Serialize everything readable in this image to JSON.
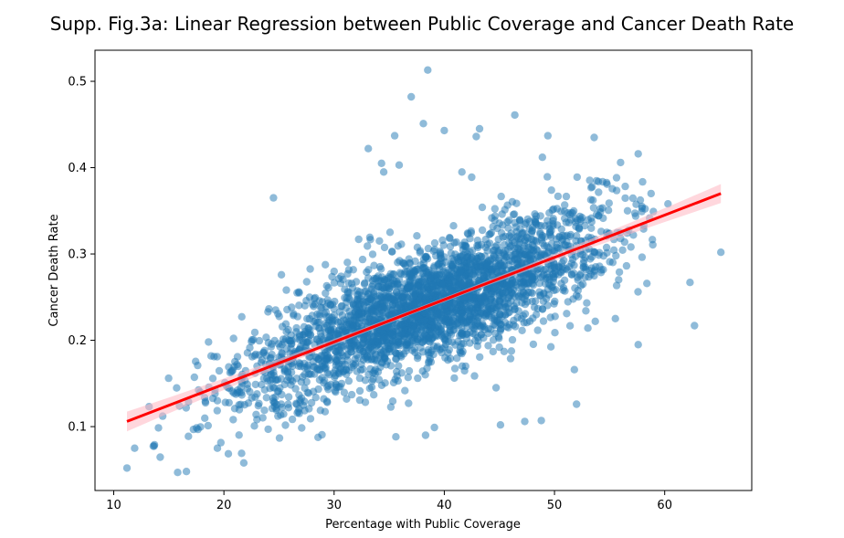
{
  "chart_data": {
    "type": "scatter",
    "title": "Supp. Fig.3a: Linear Regression between Public Coverage and Cancer Death Rate",
    "xlabel": "Percentage with Public Coverage",
    "ylabel": "Cancer Death Rate",
    "xlim": [
      8.3,
      67.9
    ],
    "ylim": [
      0.026,
      0.536
    ],
    "x_ticks": [
      10,
      20,
      30,
      40,
      50,
      60
    ],
    "y_ticks": [
      0.1,
      0.2,
      0.3,
      0.4,
      0.5
    ],
    "grid": false,
    "colors": {
      "points": "#1f77b4",
      "regression": "#ff0000",
      "ci_band": "#ffb6c1"
    },
    "regression": {
      "x": [
        11.2,
        65.1
      ],
      "y": [
        0.106,
        0.37
      ]
    },
    "outliers": {
      "x": [
        11.2,
        11.9,
        13.7,
        15.8,
        16.6,
        18.6,
        21.8,
        24.5,
        33.1,
        34.3,
        34.5,
        35.5,
        35.9,
        37.0,
        38.1,
        38.5,
        40.0,
        41.6,
        42.9,
        43.2,
        46.4,
        48.9,
        49.4,
        53.6,
        56.0,
        57.6,
        60.3,
        62.3,
        62.7,
        65.1,
        57.6,
        53.7,
        51.8,
        39.1,
        45.1,
        47.3,
        48.8,
        52.0,
        38.3,
        44.7
      ],
      "y": [
        0.052,
        0.075,
        0.079,
        0.047,
        0.048,
        0.198,
        0.058,
        0.365,
        0.422,
        0.405,
        0.395,
        0.437,
        0.403,
        0.482,
        0.451,
        0.513,
        0.443,
        0.395,
        0.436,
        0.445,
        0.461,
        0.412,
        0.437,
        0.435,
        0.406,
        0.416,
        0.358,
        0.267,
        0.217,
        0.302,
        0.195,
        0.222,
        0.166,
        0.099,
        0.102,
        0.106,
        0.107,
        0.126,
        0.09,
        0.145
      ]
    },
    "generated_cloud": {
      "count": 3000,
      "x_center": 38.5,
      "x_spread": 8.2,
      "x_min": 12,
      "x_max": 59
    }
  }
}
